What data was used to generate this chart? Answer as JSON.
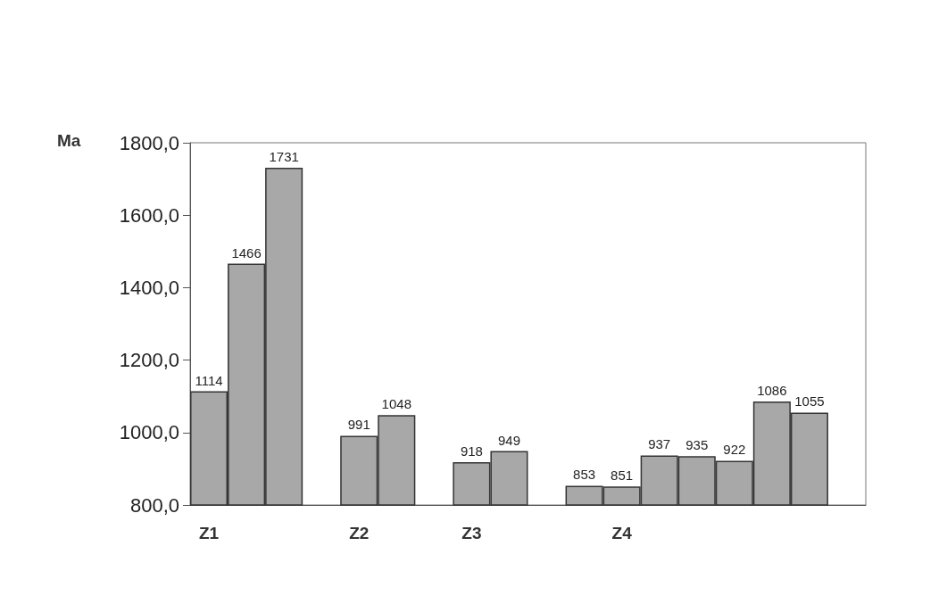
{
  "chart_data": {
    "type": "bar",
    "ylabel": "Ma",
    "categories": [
      "Z1",
      null,
      null,
      null,
      "Z2",
      null,
      null,
      "Z3",
      null,
      null,
      null,
      "Z4",
      null,
      null,
      null,
      null,
      null,
      null
    ],
    "values": [
      1114,
      1466,
      1731,
      null,
      991,
      1048,
      null,
      918,
      949,
      null,
      853,
      851,
      937,
      935,
      922,
      1086,
      1055,
      null
    ],
    "color": "#a8a8a8",
    "ylim": [
      800,
      1800
    ],
    "yticks": [
      {
        "value": 800,
        "label": "800,0"
      },
      {
        "value": 1000,
        "label": "1000,0"
      },
      {
        "value": 1200,
        "label": "1200,0"
      },
      {
        "value": 1400,
        "label": "1400,0"
      },
      {
        "value": 1600,
        "label": "1600,0"
      },
      {
        "value": 1800,
        "label": "1800,0"
      }
    ],
    "data_labels": true
  }
}
